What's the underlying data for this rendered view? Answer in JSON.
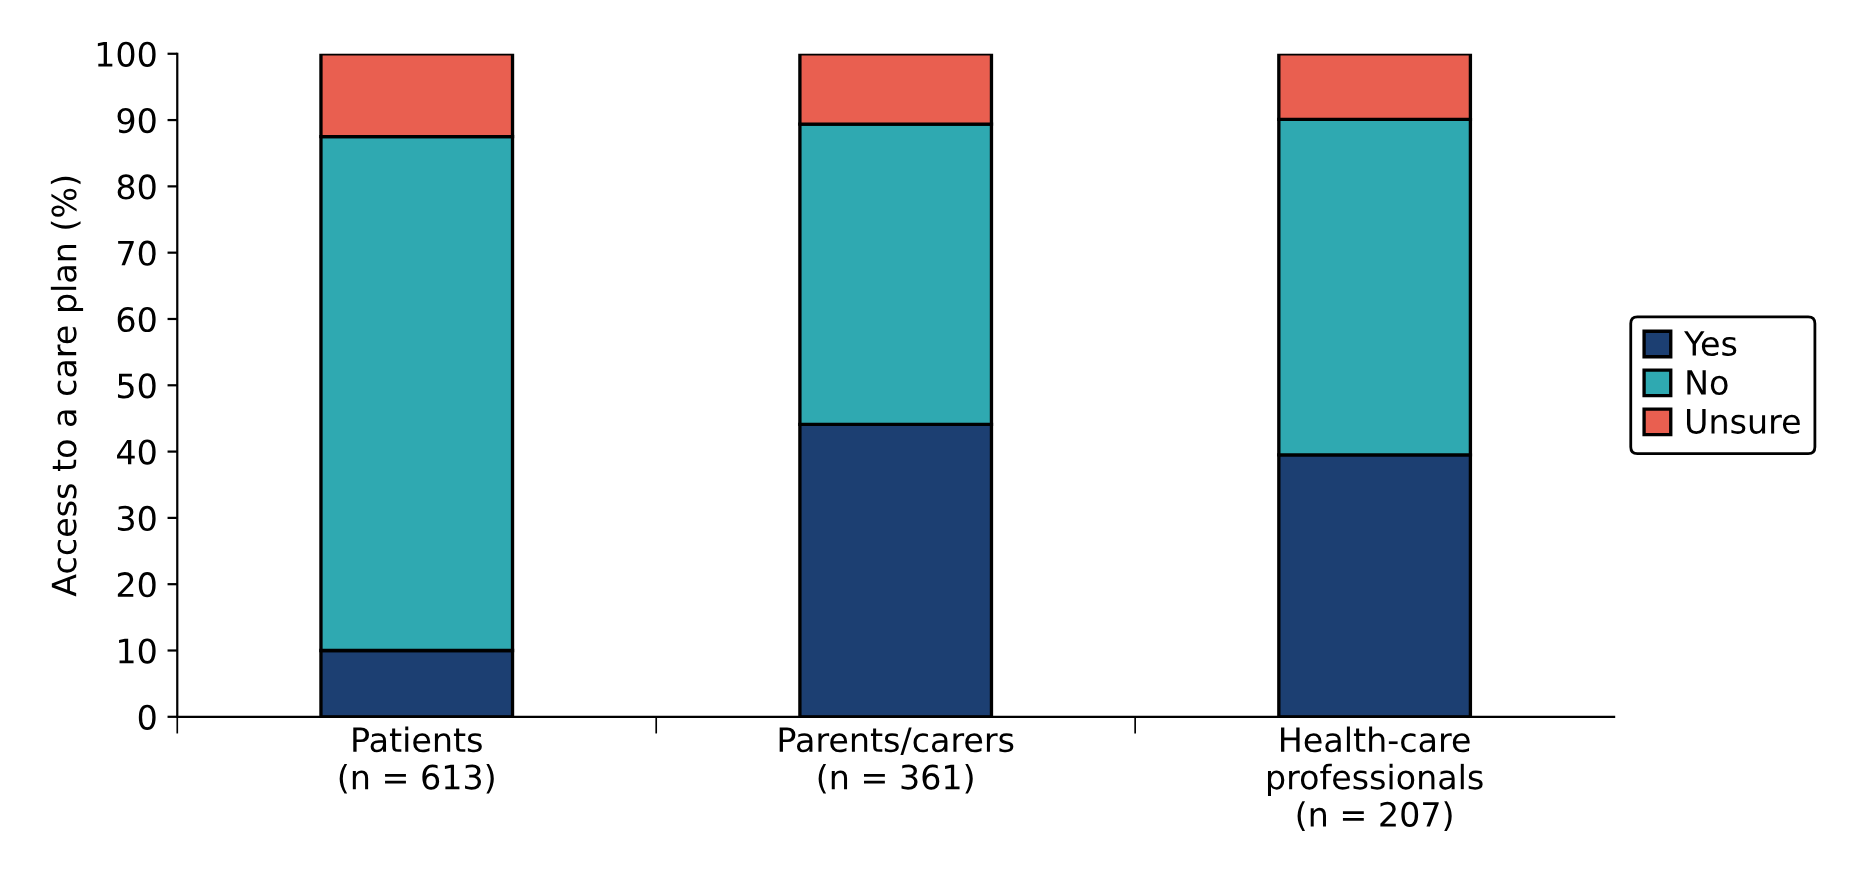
{
  "chart_data": {
    "type": "bar",
    "stacked": true,
    "ylabel": "Access to a care plan (%)",
    "categories": [
      "Patients\n(n = 613)",
      "Parents/carers\n(n = 361)",
      "Health-care\nprofessionals\n(n = 207)"
    ],
    "series": [
      {
        "name": "Yes",
        "color": "#1c3f72",
        "values": [
          10.0,
          44.1,
          39.5
        ]
      },
      {
        "name": "No",
        "color": "#2fa9b1",
        "values": [
          77.5,
          45.3,
          50.6
        ]
      },
      {
        "name": "Unsure",
        "color": "#e95f50",
        "values": [
          12.5,
          10.6,
          9.9
        ]
      }
    ],
    "ylim": [
      0,
      100
    ],
    "yticks": [
      0,
      10,
      20,
      30,
      40,
      50,
      60,
      70,
      80,
      90,
      100
    ],
    "grid": false,
    "legend": "right"
  }
}
